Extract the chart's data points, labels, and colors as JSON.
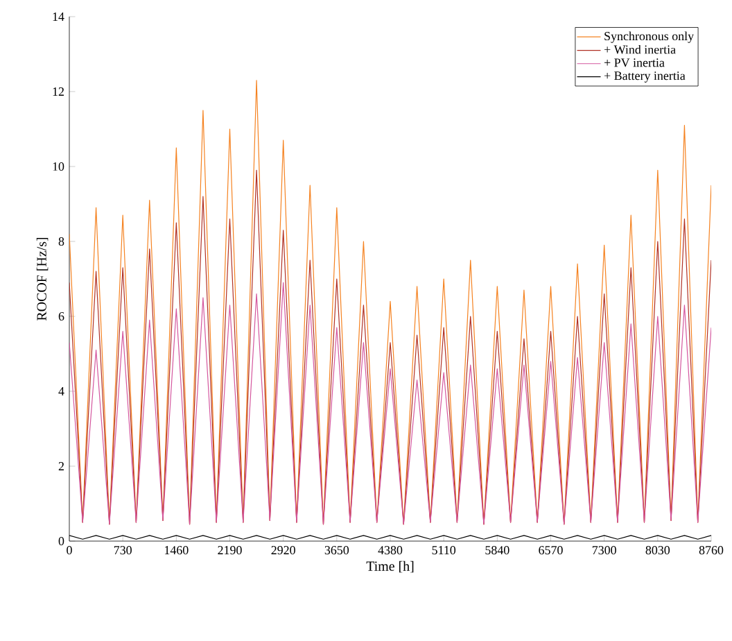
{
  "chart_data": {
    "type": "line",
    "xlabel": "Time [h]",
    "ylabel": "ROCOF [Hz/s]",
    "x": [
      0,
      182,
      365,
      547,
      730,
      912,
      1095,
      1277,
      1460,
      1642,
      1825,
      2007,
      2190,
      2372,
      2555,
      2737,
      2920,
      3102,
      3285,
      3467,
      3650,
      3832,
      4015,
      4197,
      4380,
      4562,
      4745,
      4927,
      5110,
      5292,
      5475,
      5657,
      5840,
      6022,
      6205,
      6387,
      6570,
      6752,
      6935,
      7117,
      7300,
      7482,
      7665,
      7847,
      8030,
      8212,
      8395,
      8577,
      8760
    ],
    "series": [
      {
        "name": "Synchronous only",
        "color": "#f58220",
        "values": [
          8.2,
          0.5,
          8.9,
          0.45,
          8.7,
          0.5,
          9.1,
          0.55,
          10.5,
          0.45,
          11.5,
          0.5,
          11.0,
          0.5,
          12.3,
          0.55,
          10.7,
          0.5,
          9.5,
          0.45,
          8.9,
          0.5,
          8.0,
          0.5,
          6.4,
          0.45,
          6.8,
          0.5,
          7.0,
          0.5,
          7.5,
          0.45,
          6.8,
          0.5,
          6.7,
          0.5,
          6.8,
          0.45,
          7.4,
          0.5,
          7.9,
          0.5,
          8.7,
          0.5,
          9.9,
          0.55,
          11.1,
          0.5,
          9.5
        ]
      },
      {
        "name": "+ Wind inertia",
        "color": "#b03024",
        "values": [
          6.9,
          0.5,
          7.2,
          0.45,
          7.3,
          0.5,
          7.8,
          0.55,
          8.5,
          0.45,
          9.2,
          0.5,
          8.6,
          0.5,
          9.9,
          0.55,
          8.3,
          0.5,
          7.5,
          0.45,
          7.0,
          0.5,
          6.3,
          0.5,
          5.3,
          0.45,
          5.5,
          0.5,
          5.7,
          0.5,
          6.0,
          0.45,
          5.6,
          0.5,
          5.4,
          0.5,
          5.6,
          0.45,
          6.0,
          0.5,
          6.6,
          0.5,
          7.3,
          0.5,
          8.0,
          0.55,
          8.6,
          0.5,
          7.5
        ]
      },
      {
        "name": "+ PV inertia",
        "color": "#d4569e",
        "values": [
          5.3,
          0.5,
          5.1,
          0.45,
          5.6,
          0.5,
          5.9,
          0.55,
          6.2,
          0.45,
          6.5,
          0.5,
          6.3,
          0.5,
          6.6,
          0.55,
          6.9,
          0.5,
          6.3,
          0.45,
          5.7,
          0.5,
          5.3,
          0.5,
          4.6,
          0.45,
          4.3,
          0.5,
          4.5,
          0.5,
          4.7,
          0.45,
          4.6,
          0.5,
          4.7,
          0.5,
          4.8,
          0.45,
          4.9,
          0.5,
          5.3,
          0.5,
          5.8,
          0.5,
          6.0,
          0.55,
          6.3,
          0.5,
          5.7
        ]
      },
      {
        "name": "+ Battery inertia",
        "color": "#000000",
        "values": [
          0.15,
          0.05,
          0.15,
          0.05,
          0.15,
          0.05,
          0.15,
          0.05,
          0.15,
          0.05,
          0.15,
          0.05,
          0.15,
          0.05,
          0.15,
          0.05,
          0.15,
          0.05,
          0.15,
          0.05,
          0.15,
          0.05,
          0.15,
          0.05,
          0.15,
          0.05,
          0.15,
          0.05,
          0.15,
          0.05,
          0.15,
          0.05,
          0.15,
          0.05,
          0.15,
          0.05,
          0.15,
          0.05,
          0.15,
          0.05,
          0.15,
          0.05,
          0.15,
          0.05,
          0.15,
          0.05,
          0.15,
          0.05,
          0.15
        ]
      }
    ],
    "xlim": [
      0,
      8760
    ],
    "xticks": [
      0,
      730,
      1460,
      2190,
      2920,
      3650,
      4380,
      5110,
      5840,
      6570,
      7300,
      8030,
      8760
    ],
    "ylim": [
      0,
      14
    ],
    "yticks": [
      0,
      2,
      4,
      6,
      8,
      10,
      12,
      14
    ],
    "legend": "top right",
    "grid": false,
    "line_style": "solid",
    "marker": "none"
  }
}
